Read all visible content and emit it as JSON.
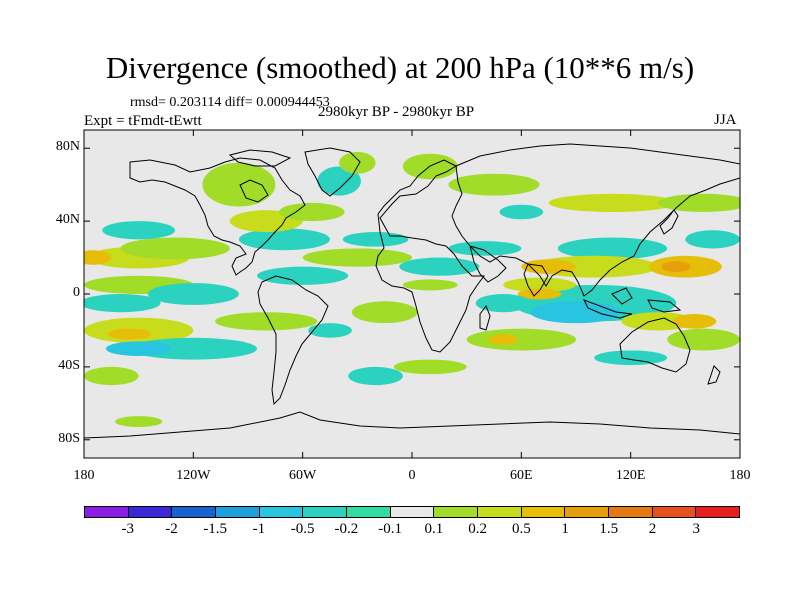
{
  "title": "Divergence (smoothed) at 200 hPa (10**6 m/s)",
  "stats": "rmsd= 0.203114  diff= 0.000944453",
  "experiment": "Expt = tFmdt-tEwtt",
  "period": "2980kyr BP - 2980kyr BP",
  "season": "JJA",
  "colors": {
    "background": "#e8e8e8",
    "coastline": "#000000"
  },
  "chart_data": {
    "type": "filled-contour-map",
    "title": "Divergence (smoothed) at 200 hPa (10**6 m/s)",
    "projection": "cylindrical equidistant",
    "xlim": [
      -180,
      180
    ],
    "ylim": [
      -90,
      90
    ],
    "x_ticks": [
      {
        "value": -180,
        "label": "180"
      },
      {
        "value": -120,
        "label": "120W"
      },
      {
        "value": -60,
        "label": "60W"
      },
      {
        "value": 0,
        "label": "0"
      },
      {
        "value": 60,
        "label": "60E"
      },
      {
        "value": 120,
        "label": "120E"
      },
      {
        "value": 180,
        "label": "180"
      }
    ],
    "y_ticks": [
      {
        "value": 80,
        "label": "80N"
      },
      {
        "value": 40,
        "label": "40N"
      },
      {
        "value": 0,
        "label": "0"
      },
      {
        "value": -40,
        "label": "40S"
      },
      {
        "value": -80,
        "label": "80S"
      }
    ],
    "colorbar": {
      "colors": [
        "#8c1ee8",
        "#3c28d8",
        "#1464d2",
        "#1ea0e0",
        "#28c4e0",
        "#2cd2c0",
        "#30dca0",
        "#e8e8e8",
        "#a0dc28",
        "#c8dc1e",
        "#e6be0a",
        "#e6a00a",
        "#e67814",
        "#e6501e",
        "#e61e1e"
      ],
      "labels": [
        "-3",
        "-2",
        "-1.5",
        "-1",
        "-0.5",
        "-0.2",
        "-0.1",
        "0.1",
        "0.2",
        "0.5",
        "1",
        "1.5",
        "2",
        "3"
      ]
    },
    "regions": [
      {
        "level": 9,
        "lon": -150,
        "lat": 20,
        "rx": 28,
        "ry": 6
      },
      {
        "level": 10,
        "lon": -175,
        "lat": 20,
        "rx": 10,
        "ry": 4
      },
      {
        "level": 8,
        "lon": -130,
        "lat": 25,
        "rx": 30,
        "ry": 6
      },
      {
        "level": 5,
        "lon": -150,
        "lat": 35,
        "rx": 20,
        "ry": 5
      },
      {
        "level": 8,
        "lon": -150,
        "lat": 5,
        "rx": 30,
        "ry": 5
      },
      {
        "level": 5,
        "lon": -160,
        "lat": -5,
        "rx": 22,
        "ry": 5
      },
      {
        "level": 5,
        "lon": -120,
        "lat": 0,
        "rx": 25,
        "ry": 6
      },
      {
        "level": 9,
        "lon": -150,
        "lat": -20,
        "rx": 30,
        "ry": 7
      },
      {
        "level": 10,
        "lon": -155,
        "lat": -22,
        "rx": 12,
        "ry": 3
      },
      {
        "level": 5,
        "lon": -120,
        "lat": -30,
        "rx": 35,
        "ry": 6
      },
      {
        "level": 4,
        "lon": -150,
        "lat": -30,
        "rx": 18,
        "ry": 4
      },
      {
        "level": 8,
        "lon": -165,
        "lat": -45,
        "rx": 15,
        "ry": 5
      },
      {
        "level": 8,
        "lon": -150,
        "lat": -70,
        "rx": 13,
        "ry": 3
      },
      {
        "level": 8,
        "lon": -95,
        "lat": 60,
        "rx": 20,
        "ry": 12
      },
      {
        "level": 5,
        "lon": -40,
        "lat": 62,
        "rx": 12,
        "ry": 8
      },
      {
        "level": 8,
        "lon": -30,
        "lat": 72,
        "rx": 10,
        "ry": 6
      },
      {
        "level": 5,
        "lon": -70,
        "lat": 30,
        "rx": 25,
        "ry": 6
      },
      {
        "level": 9,
        "lon": -80,
        "lat": 40,
        "rx": 20,
        "ry": 6
      },
      {
        "level": 8,
        "lon": -55,
        "lat": 45,
        "rx": 18,
        "ry": 5
      },
      {
        "level": 5,
        "lon": -60,
        "lat": 10,
        "rx": 25,
        "ry": 5
      },
      {
        "level": 8,
        "lon": -30,
        "lat": 20,
        "rx": 30,
        "ry": 5
      },
      {
        "level": 5,
        "lon": -20,
        "lat": 30,
        "rx": 18,
        "ry": 4
      },
      {
        "level": 8,
        "lon": -80,
        "lat": -15,
        "rx": 28,
        "ry": 5
      },
      {
        "level": 5,
        "lon": -45,
        "lat": -20,
        "rx": 12,
        "ry": 4
      },
      {
        "level": 8,
        "lon": -15,
        "lat": -10,
        "rx": 18,
        "ry": 6
      },
      {
        "level": 5,
        "lon": 15,
        "lat": 15,
        "rx": 22,
        "ry": 5
      },
      {
        "level": 8,
        "lon": 10,
        "lat": 5,
        "rx": 15,
        "ry": 3
      },
      {
        "level": 8,
        "lon": 10,
        "lat": 70,
        "rx": 15,
        "ry": 7
      },
      {
        "level": 8,
        "lon": 45,
        "lat": 60,
        "rx": 25,
        "ry": 6
      },
      {
        "level": 9,
        "lon": 110,
        "lat": 50,
        "rx": 35,
        "ry": 5
      },
      {
        "level": 8,
        "lon": 160,
        "lat": 50,
        "rx": 25,
        "ry": 5
      },
      {
        "level": 5,
        "lon": 60,
        "lat": 45,
        "rx": 12,
        "ry": 4
      },
      {
        "level": 5,
        "lon": 40,
        "lat": 25,
        "rx": 20,
        "ry": 4
      },
      {
        "level": 5,
        "lon": 110,
        "lat": 25,
        "rx": 30,
        "ry": 6
      },
      {
        "level": 5,
        "lon": 165,
        "lat": 30,
        "rx": 15,
        "ry": 5
      },
      {
        "level": 9,
        "lon": 100,
        "lat": 15,
        "rx": 35,
        "ry": 6
      },
      {
        "level": 10,
        "lon": 75,
        "lat": 15,
        "rx": 15,
        "ry": 4
      },
      {
        "level": 10,
        "lon": 150,
        "lat": 15,
        "rx": 20,
        "ry": 6
      },
      {
        "level": 11,
        "lon": 145,
        "lat": 15,
        "rx": 8,
        "ry": 3
      },
      {
        "level": 5,
        "lon": 100,
        "lat": -5,
        "rx": 45,
        "ry": 10
      },
      {
        "level": 4,
        "lon": 90,
        "lat": -10,
        "rx": 25,
        "ry": 6
      },
      {
        "level": 9,
        "lon": 70,
        "lat": 5,
        "rx": 20,
        "ry": 4
      },
      {
        "level": 10,
        "lon": 70,
        "lat": 0,
        "rx": 12,
        "ry": 3
      },
      {
        "level": 5,
        "lon": 50,
        "lat": -5,
        "rx": 15,
        "ry": 5
      },
      {
        "level": 9,
        "lon": 135,
        "lat": -15,
        "rx": 20,
        "ry": 5
      },
      {
        "level": 10,
        "lon": 155,
        "lat": -15,
        "rx": 12,
        "ry": 4
      },
      {
        "level": 8,
        "lon": 160,
        "lat": -25,
        "rx": 20,
        "ry": 6
      },
      {
        "level": 8,
        "lon": 60,
        "lat": -25,
        "rx": 30,
        "ry": 6
      },
      {
        "level": 10,
        "lon": 50,
        "lat": -25,
        "rx": 8,
        "ry": 3
      },
      {
        "level": 5,
        "lon": 120,
        "lat": -35,
        "rx": 20,
        "ry": 4
      },
      {
        "level": 8,
        "lon": 10,
        "lat": -40,
        "rx": 20,
        "ry": 4
      },
      {
        "level": 5,
        "lon": -20,
        "lat": -45,
        "rx": 15,
        "ry": 5
      }
    ]
  }
}
